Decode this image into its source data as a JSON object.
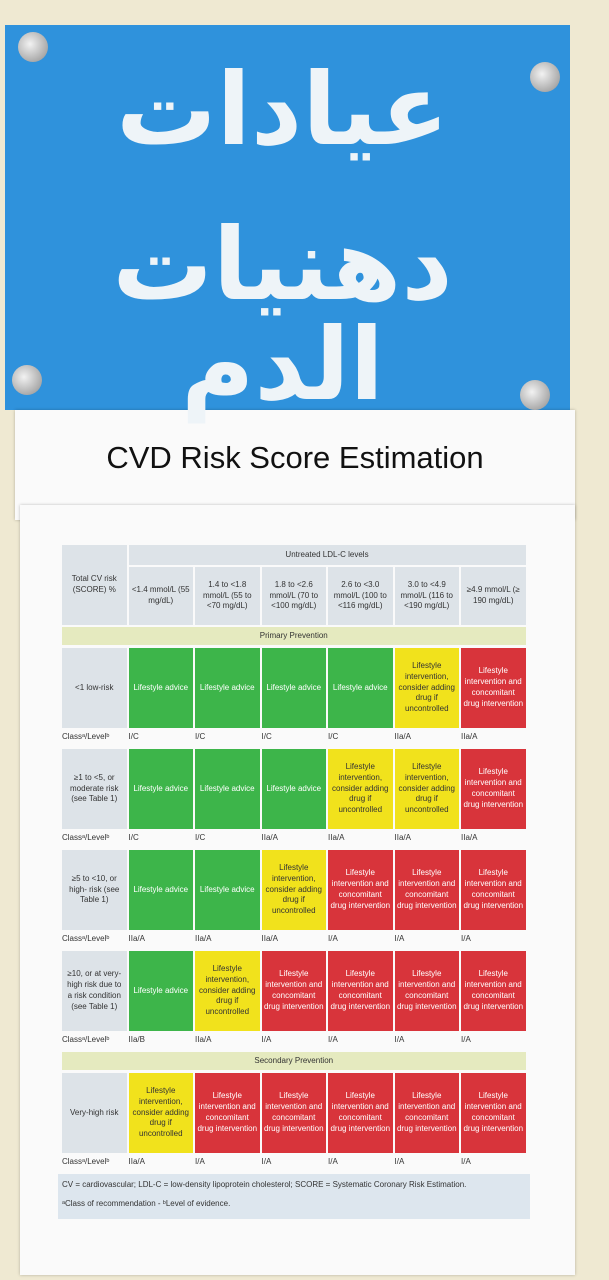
{
  "sign": {
    "lines": [
      "عيادات",
      "دهنيات الدم"
    ]
  },
  "title": "CVD Risk Score Estimation",
  "table": {
    "corner": "Total CV risk (SCORE) %",
    "header": "Untreated LDL-C levels",
    "columns": [
      "<1.4 mmol/L (55 mg/dL)",
      "1.4 to <1.8 mmol/L (55 to <70 mg/dL)",
      "1.8 to <2.6 mmol/L (70 to <100 mg/dL)",
      "2.6 to <3.0 mmol/L (100 to <116 mg/dL)",
      "3.0 to <4.9 mmol/L (116 to <190 mg/dL)",
      "≥4.9 mmol/L (≥ 190 mg/dL)"
    ],
    "sections": [
      {
        "title": "Primary Prevention",
        "rows": [
          {
            "label": "<1 low-risk",
            "class_label": "Classᵃ/Levelᵇ",
            "cells": [
              {
                "text": "Lifestyle advice",
                "color": "#3db54a"
              },
              {
                "text": "Lifestyle advice",
                "color": "#3db54a"
              },
              {
                "text": "Lifestyle advice",
                "color": "#3db54a"
              },
              {
                "text": "Lifestyle advice",
                "color": "#3db54a"
              },
              {
                "text": "Lifestyle intervention, consider adding drug if uncontrolled",
                "color": "#f1e21c"
              },
              {
                "text": "Lifestyle intervention and concomitant drug intervention",
                "color": "#d8343b"
              }
            ],
            "classes": [
              "I/C",
              "I/C",
              "I/C",
              "I/C",
              "IIa/A",
              "IIa/A"
            ]
          },
          {
            "label": "≥1 to <5, or moderate risk (see Table 1)",
            "class_label": "Classᵃ/Levelᵇ",
            "cells": [
              {
                "text": "Lifestyle advice",
                "color": "#3db54a"
              },
              {
                "text": "Lifestyle advice",
                "color": "#3db54a"
              },
              {
                "text": "Lifestyle advice",
                "color": "#3db54a"
              },
              {
                "text": "Lifestyle intervention, consider adding drug if uncontrolled",
                "color": "#f1e21c"
              },
              {
                "text": "Lifestyle intervention, consider adding drug if uncontrolled",
                "color": "#f1e21c"
              },
              {
                "text": "Lifestyle intervention and concomitant drug intervention",
                "color": "#d8343b"
              }
            ],
            "classes": [
              "I/C",
              "I/C",
              "IIa/A",
              "IIa/A",
              "IIa/A",
              "IIa/A"
            ]
          },
          {
            "label": "≥5 to <10, or high- risk (see Table 1)",
            "class_label": "Classᵃ/Levelᵇ",
            "cells": [
              {
                "text": "Lifestyle advice",
                "color": "#3db54a"
              },
              {
                "text": "Lifestyle advice",
                "color": "#3db54a"
              },
              {
                "text": "Lifestyle intervention, consider adding drug if uncontrolled",
                "color": "#f1e21c"
              },
              {
                "text": "Lifestyle intervention and concomitant drug intervention",
                "color": "#d8343b"
              },
              {
                "text": "Lifestyle intervention and concomitant drug intervention",
                "color": "#d8343b"
              },
              {
                "text": "Lifestyle intervention and concomitant drug intervention",
                "color": "#d8343b"
              }
            ],
            "classes": [
              "IIa/A",
              "IIa/A",
              "IIa/A",
              "I/A",
              "I/A",
              "I/A"
            ]
          },
          {
            "label": "≥10, or at very-high risk due to a risk condition (see Table 1)",
            "class_label": "Classᵃ/Levelᵇ",
            "cells": [
              {
                "text": "Lifestyle advice",
                "color": "#3db54a"
              },
              {
                "text": "Lifestyle intervention, consider adding drug if uncontrolled",
                "color": "#f1e21c"
              },
              {
                "text": "Lifestyle intervention and concomitant drug intervention",
                "color": "#d8343b"
              },
              {
                "text": "Lifestyle intervention and concomitant drug intervention",
                "color": "#d8343b"
              },
              {
                "text": "Lifestyle intervention and concomitant drug intervention",
                "color": "#d8343b"
              },
              {
                "text": "Lifestyle intervention and concomitant drug intervention",
                "color": "#d8343b"
              }
            ],
            "classes": [
              "IIa/B",
              "IIa/A",
              "I/A",
              "I/A",
              "I/A",
              "I/A"
            ]
          }
        ]
      },
      {
        "title": "Secondary Prevention",
        "rows": [
          {
            "label": "Very-high risk",
            "class_label": "Classᵃ/Levelᵇ",
            "cells": [
              {
                "text": "Lifestyle intervention, consider adding drug if uncontrolled",
                "color": "#f1e21c"
              },
              {
                "text": "Lifestyle intervention and concomitant drug intervention",
                "color": "#d8343b"
              },
              {
                "text": "Lifestyle intervention and concomitant drug intervention",
                "color": "#d8343b"
              },
              {
                "text": "Lifestyle intervention and concomitant drug intervention",
                "color": "#d8343b"
              },
              {
                "text": "Lifestyle intervention and concomitant drug intervention",
                "color": "#d8343b"
              },
              {
                "text": "Lifestyle intervention and concomitant drug intervention",
                "color": "#d8343b"
              }
            ],
            "classes": [
              "IIa/A",
              "I/A",
              "I/A",
              "I/A",
              "I/A",
              "I/A"
            ]
          }
        ]
      }
    ],
    "footnotes": [
      "CV = cardiovascular; LDL-C = low-density lipoprotein cholesterol; SCORE = Systematic Coronary Risk Estimation.",
      "ᵃClass of recommendation - ᵇLevel of evidence."
    ]
  }
}
